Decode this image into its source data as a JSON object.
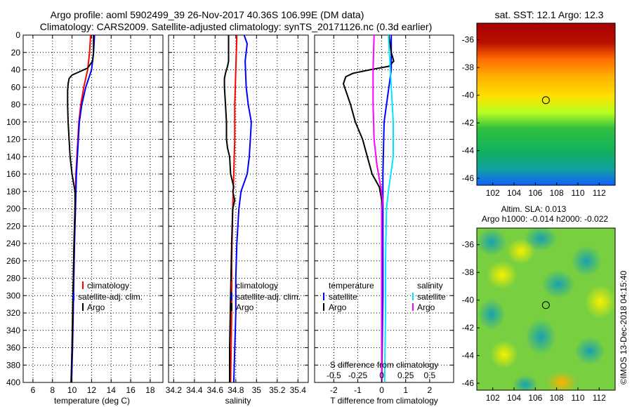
{
  "header": {
    "title_line1": "Argo profile: aoml 5902499_39 26-Nov-2017 40.36S 106.99E (DM data)",
    "title_line2": "Climatology: CARS2009. Satellite-adjusted climatology: synTS_20171126.nc (0.3d earlier)"
  },
  "colors": {
    "climatology": "#ff0000",
    "satellite": "#0000ff",
    "argo": "#000000",
    "sal_satellite": "#00e5ff",
    "sal_argo": "#ff00ff"
  },
  "chart_data": [
    {
      "type": "line",
      "id": "temperature",
      "xlabel": "temperature (deg C)",
      "ylabel": "",
      "xlim": [
        5,
        19.3
      ],
      "ylim": [
        400,
        0
      ],
      "xticks": [
        "6",
        "8",
        "10",
        "12",
        "14",
        "16",
        "18"
      ],
      "xtick_values": [
        6,
        8,
        10,
        12,
        14,
        16,
        18
      ],
      "yticks": [
        "0",
        "20",
        "40",
        "60",
        "80",
        "100",
        "120",
        "140",
        "160",
        "180",
        "200",
        "220",
        "240",
        "260",
        "280",
        "300",
        "320",
        "340",
        "360",
        "380",
        "400"
      ],
      "ytick_values": [
        0,
        20,
        40,
        60,
        80,
        100,
        120,
        140,
        160,
        180,
        200,
        220,
        240,
        260,
        280,
        300,
        320,
        340,
        360,
        380,
        400
      ],
      "legend": [
        "climatology",
        "satellite-adj. clim.",
        "Argo"
      ],
      "series": [
        {
          "name": "climatology",
          "color": "#ff0000",
          "depth": [
            0,
            20,
            40,
            60,
            80,
            100,
            120,
            140,
            160,
            180,
            200,
            240,
            300,
            360,
            400
          ],
          "values": [
            11.9,
            11.8,
            11.6,
            11.2,
            10.9,
            10.7,
            10.6,
            10.5,
            10.4,
            10.35,
            10.3,
            10.2,
            10.1,
            10.0,
            9.95
          ]
        },
        {
          "name": "satellite-adj. clim.",
          "color": "#0000ff",
          "depth": [
            0,
            20,
            40,
            60,
            80,
            100,
            120,
            140,
            160,
            180,
            200,
            240,
            300,
            360,
            400
          ],
          "values": [
            12.3,
            12.2,
            12.0,
            11.4,
            11.0,
            10.75,
            10.65,
            10.55,
            10.45,
            10.4,
            10.35,
            10.25,
            10.15,
            10.05,
            9.95
          ]
        },
        {
          "name": "Argo",
          "color": "#000000",
          "depth": [
            0,
            20,
            30,
            38,
            42,
            46,
            50,
            56,
            64,
            80,
            100,
            120,
            140,
            160,
            170,
            180,
            200,
            240,
            300,
            360,
            400
          ],
          "values": [
            12.2,
            12.2,
            12.1,
            11.6,
            10.8,
            10.0,
            9.7,
            9.6,
            9.55,
            9.55,
            9.6,
            9.7,
            9.8,
            10.0,
            10.15,
            10.3,
            10.3,
            10.2,
            10.1,
            10.0,
            9.9
          ]
        }
      ]
    },
    {
      "type": "line",
      "id": "salinity",
      "xlabel": "salinity",
      "ylabel": "",
      "xlim": [
        34.15,
        35.5
      ],
      "ylim": [
        400,
        0
      ],
      "xticks": [
        "34.2",
        "34.4",
        "34.6",
        "34.8",
        "35",
        "35.2",
        "35.4"
      ],
      "xtick_values": [
        34.2,
        34.4,
        34.6,
        34.8,
        35.0,
        35.2,
        35.4
      ],
      "legend": [
        "climatology",
        "satellite-adj. clim.",
        "Argo"
      ],
      "series": [
        {
          "name": "climatology",
          "color": "#ff0000",
          "depth": [
            0,
            40,
            80,
            120,
            160,
            200,
            260,
            320,
            400
          ],
          "values": [
            34.81,
            34.8,
            34.79,
            34.79,
            34.78,
            34.77,
            34.76,
            34.76,
            34.75
          ]
        },
        {
          "name": "satellite-adj. clim.",
          "color": "#0000ff",
          "depth": [
            0,
            10,
            30,
            60,
            80,
            100,
            120,
            140,
            160,
            180,
            200,
            240,
            280,
            320,
            360,
            400
          ],
          "values": [
            34.88,
            34.91,
            34.89,
            34.9,
            34.92,
            34.95,
            34.94,
            34.93,
            34.91,
            34.85,
            34.83,
            34.81,
            34.8,
            34.8,
            34.79,
            34.78
          ]
        },
        {
          "name": "Argo",
          "color": "#000000",
          "depth": [
            0,
            30,
            36,
            44,
            50,
            60,
            80,
            100,
            120,
            130,
            140,
            160,
            175,
            180,
            190,
            200,
            240,
            300,
            360,
            400
          ],
          "values": [
            34.73,
            34.73,
            34.72,
            34.7,
            34.69,
            34.69,
            34.7,
            34.71,
            34.71,
            34.72,
            34.74,
            34.75,
            34.78,
            34.77,
            34.79,
            34.77,
            34.76,
            34.75,
            34.74,
            34.74
          ]
        }
      ]
    },
    {
      "type": "line",
      "id": "differences",
      "xlabel": "T difference from climatology",
      "top_axis_label": "S difference from climatology",
      "xlim": [
        -2.8,
        3.0
      ],
      "ylim": [
        400,
        0
      ],
      "xticks": [
        "-2",
        "-1",
        "0",
        "1",
        "2"
      ],
      "xtick_values": [
        -2,
        -1,
        0,
        1,
        2
      ],
      "s_xticks": [
        "-0.5",
        "-0.25",
        "0",
        "0.25",
        "0.5"
      ],
      "s_xtick_values": [
        -0.5,
        -0.25,
        0,
        0.25,
        0.5
      ],
      "s_scale": 4,
      "legend_temperature_title": "temperature",
      "legend_salinity_title": "salinity",
      "legend_temperature": [
        "satellite",
        "Argo"
      ],
      "legend_salinity": [
        "satellite",
        "Argo"
      ],
      "series": [
        {
          "name": "T satellite",
          "color": "#0000ff",
          "depth": [
            0,
            40,
            60,
            100,
            160,
            200,
            300,
            400
          ],
          "values": [
            0.4,
            0.4,
            0.3,
            0.1,
            0.05,
            0.05,
            0.05,
            0.0
          ]
        },
        {
          "name": "T Argo",
          "color": "#000000",
          "depth": [
            0,
            20,
            30,
            36,
            40,
            44,
            48,
            56,
            64,
            80,
            100,
            120,
            140,
            160,
            175,
            190,
            200,
            260,
            320,
            400
          ],
          "values": [
            0.3,
            0.4,
            0.5,
            0.3,
            -0.5,
            -1.2,
            -1.5,
            -1.6,
            -1.5,
            -1.3,
            -1.1,
            -0.8,
            -0.6,
            -0.4,
            -0.1,
            0.0,
            0.0,
            0.0,
            0.0,
            0.0
          ]
        },
        {
          "name": "S satellite",
          "color": "#00e5ff",
          "depth": [
            0,
            60,
            100,
            140,
            180,
            200,
            260,
            320,
            400
          ],
          "values": [
            0.07,
            0.1,
            0.12,
            0.12,
            0.07,
            0.05,
            0.04,
            0.04,
            0.03
          ]
        },
        {
          "name": "S Argo",
          "color": "#ff00ff",
          "depth": [
            0,
            40,
            80,
            120,
            150,
            175,
            190,
            200,
            260,
            320,
            400
          ],
          "values": [
            -0.08,
            -0.09,
            -0.09,
            -0.08,
            -0.05,
            -0.01,
            0.01,
            0.0,
            0.0,
            0.0,
            0.0
          ]
        }
      ]
    }
  ],
  "maps": {
    "sst_title": "sat. SST: 12.1 Argo: 12.3",
    "sla_title_line1": "Altim. SLA: 0.013",
    "sla_title_line2": "Argo h1000: -0.014 h2000: -0.022",
    "xticks": [
      "102",
      "104",
      "106",
      "108",
      "110",
      "112"
    ],
    "xtick_values": [
      102,
      104,
      106,
      108,
      110,
      112
    ],
    "yticks": [
      "-36",
      "-38",
      "-40",
      "-42",
      "-44",
      "-46"
    ],
    "ytick_values": [
      -36,
      -38,
      -40,
      -42,
      -44,
      -46
    ],
    "xlim": [
      100.5,
      113.5
    ],
    "ylim": [
      -46.5,
      -34.8
    ],
    "marker_lon": 106.99,
    "marker_lat": -40.36
  },
  "credit": "©IMOS 13-Dec-2018 04:15:40"
}
